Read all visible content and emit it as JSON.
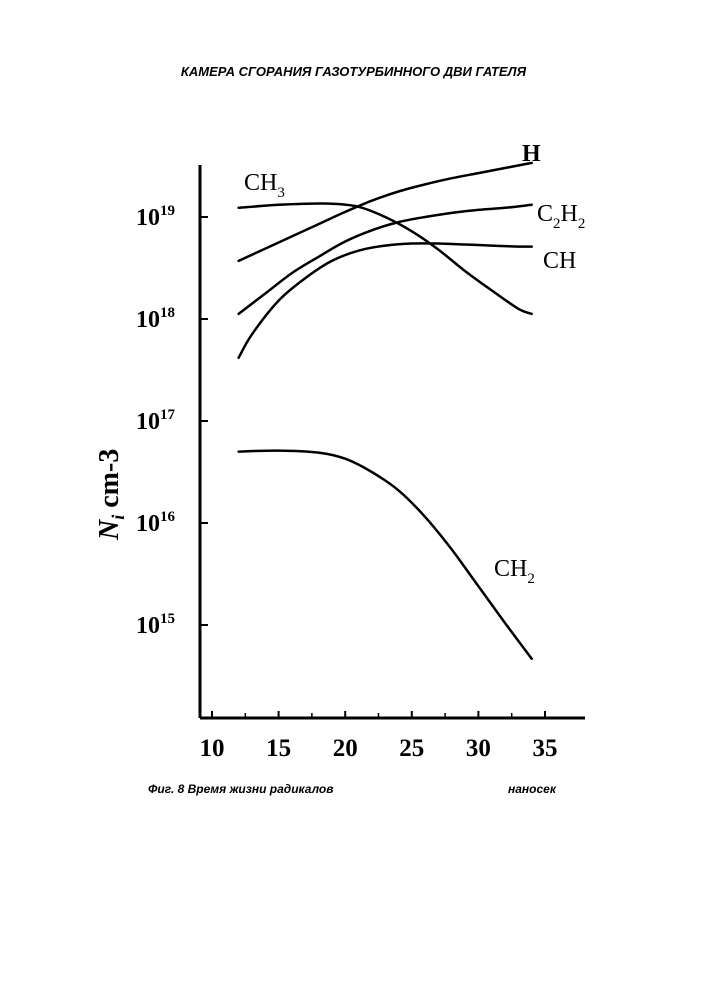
{
  "header": {
    "title": "КАМЕРА СГОРАНИЯ ГАЗОТУРБИННОГО ДВИ ГАТЕЛЯ"
  },
  "caption": {
    "figure": "Фиг. 8 Время жизни радикалов",
    "unit": "наносек"
  },
  "chart_data": {
    "type": "line",
    "title": "",
    "xlabel": "",
    "ylabel": {
      "base": "N",
      "sub": "i",
      "unit": " cm-3"
    },
    "xlim": [
      10,
      37
    ],
    "ylim_log10": [
      14,
      19.5
    ],
    "y_scale": "log",
    "grid": false,
    "x_ticks": [
      "10",
      "15",
      "20",
      "25",
      "30",
      "35"
    ],
    "y_ticks": [
      {
        "value": 15,
        "base": "10",
        "exp": "15"
      },
      {
        "value": 16,
        "base": "10",
        "exp": "16"
      },
      {
        "value": 17,
        "base": "10",
        "exp": "17"
      },
      {
        "value": 18,
        "base": "10",
        "exp": "18"
      },
      {
        "value": 19,
        "base": "10",
        "exp": "19"
      }
    ],
    "series": [
      {
        "name": "H",
        "label": {
          "text": "H",
          "sub": "",
          "text2": "",
          "sub2": ""
        },
        "x": [
          12,
          14,
          16,
          18,
          20,
          22,
          24,
          26,
          28,
          30,
          32,
          34
        ],
        "log10_y": [
          18.57,
          18.69,
          18.81,
          18.93,
          19.05,
          19.16,
          19.25,
          19.32,
          19.38,
          19.43,
          19.48,
          19.53
        ]
      },
      {
        "name": "CH3",
        "label": {
          "text": "CH",
          "sub": "3",
          "text2": "",
          "sub2": ""
        },
        "x": [
          12,
          15,
          17,
          19,
          21,
          23,
          25,
          27,
          29,
          31,
          33,
          34
        ],
        "log10_y": [
          19.09,
          19.12,
          19.13,
          19.13,
          19.1,
          19.0,
          18.86,
          18.68,
          18.47,
          18.28,
          18.1,
          18.05
        ]
      },
      {
        "name": "C2H2",
        "label": {
          "text": "C",
          "sub": "2",
          "text2": "H",
          "sub2": "2"
        },
        "x": [
          12,
          14,
          16,
          18,
          20,
          22,
          24,
          26,
          28,
          30,
          32,
          34
        ],
        "log10_y": [
          18.05,
          18.25,
          18.45,
          18.61,
          18.76,
          18.87,
          18.95,
          19.0,
          19.04,
          19.07,
          19.09,
          19.12
        ]
      },
      {
        "name": "CH",
        "label": {
          "text": "CH",
          "sub": "",
          "text2": "",
          "sub2": ""
        },
        "x": [
          12,
          13,
          15,
          17,
          19,
          21,
          23,
          25,
          27,
          29,
          31,
          33,
          34
        ],
        "log10_y": [
          17.62,
          17.85,
          18.18,
          18.4,
          18.57,
          18.67,
          18.72,
          18.74,
          18.74,
          18.73,
          18.72,
          18.71,
          18.71
        ]
      },
      {
        "name": "CH2",
        "label": {
          "text": "CH",
          "sub": "2",
          "text2": "",
          "sub2": ""
        },
        "x": [
          12,
          15,
          18,
          20,
          22,
          24,
          26,
          28,
          30,
          32,
          34
        ],
        "log10_y": [
          16.7,
          16.71,
          16.69,
          16.63,
          16.5,
          16.32,
          16.06,
          15.74,
          15.38,
          15.02,
          14.67
        ]
      }
    ]
  }
}
